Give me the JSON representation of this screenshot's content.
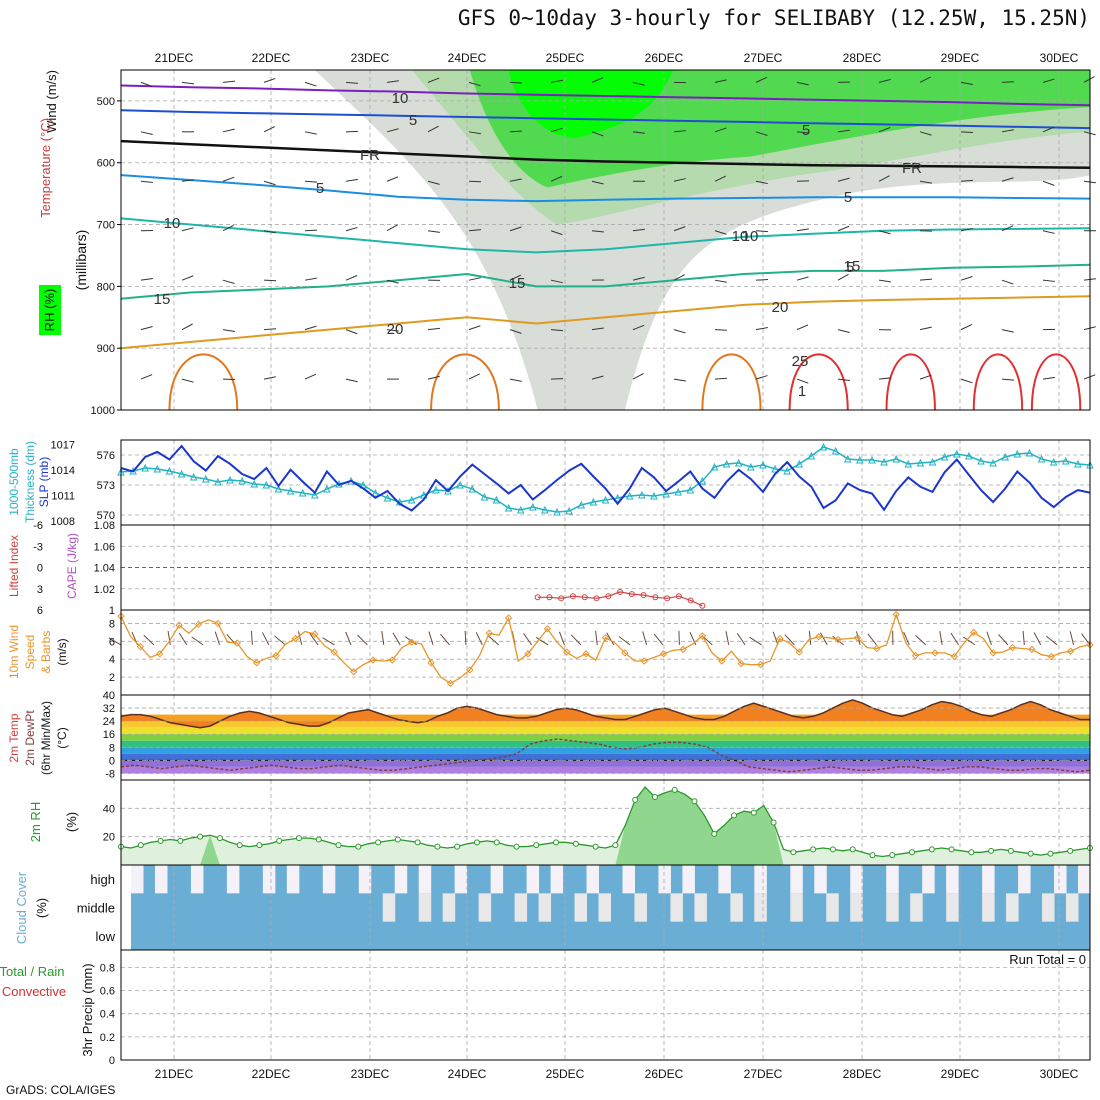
{
  "title": "GFS 0~10day 3-hourly for SELIBABY (12.25W, 15.25N)",
  "credit": "GrADS: COLA/IGES",
  "chart_data": {
    "type": "meteogram",
    "days": [
      "21DEC",
      "22DEC",
      "23DEC",
      "24DEC",
      "25DEC",
      "26DEC",
      "27DEC",
      "28DEC",
      "29DEC",
      "30DEC"
    ],
    "colors": {
      "rh_green": "#3fd93f",
      "rh_bright": "#00ff00",
      "gray": "#c8cfc8",
      "freeze": "#111111",
      "slp": "#1c36cc",
      "thick": "#22b3c3",
      "wind10": "#e8962a",
      "rh2m": "#2a9a2a",
      "cloud": "#6aaed6",
      "cloud_bg": "#e8e8e8",
      "ref_red": "#e03030"
    },
    "panels": [
      {
        "id": "upper",
        "labels": [
          "Wind (m/s)",
          "Temperature (°C)",
          "RH (%)",
          "(millibars)"
        ],
        "yticks": [
          "500",
          "600",
          "700",
          "800",
          "900",
          "1000"
        ],
        "contour_labels": [
          "10",
          "5",
          "FR",
          "5",
          "10",
          "15",
          "15",
          "20",
          "20",
          "25",
          "1",
          "10",
          "5",
          "5",
          "FR",
          "5",
          "10",
          "15"
        ],
        "isotherms": [
          {
            "label": "-10",
            "color": "#7a1fc0",
            "p": [
              475,
              478,
              480,
              483,
              485,
              488,
              490,
              492,
              494,
              496,
              498,
              500,
              502,
              505,
              507
            ]
          },
          {
            "label": "-5",
            "color": "#1f4fd0",
            "p": [
              515,
              518,
              520,
              522,
              524,
              526,
              528,
              530,
              532,
              534,
              536,
              538,
              540,
              542,
              544
            ]
          },
          {
            "label": "FR",
            "color": "#111111",
            "p": [
              565,
              570,
              575,
              580,
              585,
              590,
              595,
              598,
              600,
              602,
              604,
              605,
              606,
              607,
              608
            ]
          },
          {
            "label": "5",
            "color": "#1a8fe0",
            "p": [
              620,
              628,
              636,
              645,
              655,
              660,
              662,
              660,
              658,
              657,
              656,
              656,
              656,
              657,
              658
            ]
          },
          {
            "label": "10",
            "color": "#1fb5a8",
            "p": [
              690,
              700,
              710,
              720,
              730,
              740,
              745,
              740,
              730,
              720,
              715,
              710,
              708,
              707,
              706
            ]
          },
          {
            "label": "15",
            "color": "#22b08a",
            "p": [
              820,
              810,
              805,
              800,
              790,
              780,
              800,
              800,
              790,
              780,
              775,
              775,
              770,
              768,
              765
            ]
          },
          {
            "label": "20",
            "color": "#e09a20",
            "p": [
              900,
              890,
              880,
              870,
              860,
              850,
              860,
              850,
              840,
              830,
              825,
              822,
              820,
              818,
              816
            ]
          }
        ]
      },
      {
        "id": "slp",
        "labels": [
          "1000-500mb",
          "Thickness (dm)",
          "SLP (mb)"
        ],
        "yticks_left": [
          "576",
          "573",
          "570"
        ],
        "yticks_right": [
          "1017",
          "1014",
          "1011",
          "1008"
        ],
        "slp": [
          1014.2,
          1013.8,
          1015.5,
          1016.1,
          1015.2,
          1016.8,
          1015.0,
          1013.9,
          1015.6,
          1014.7,
          1013.5,
          1012.9,
          1014.2,
          1012.1,
          1014.0,
          1012.6,
          1011.3,
          1013.8,
          1012.2,
          1012.7,
          1011.8,
          1010.7,
          1011.5,
          1010.0,
          1009.2,
          1010.5,
          1012.8,
          1011.5,
          1013.2,
          1014.6,
          1013.5,
          1012.4,
          1011.2,
          1012.2,
          1010.5,
          1011.6,
          1012.8,
          1013.9,
          1014.7,
          1013.2,
          1011.8,
          1010.0,
          1011.8,
          1014.2,
          1013.1,
          1011.5,
          1012.6,
          1013.8,
          1011.8,
          1010.7,
          1012.6,
          1014.0,
          1012.9,
          1011.4,
          1013.5,
          1014.9,
          1013.2,
          1012.0,
          1009.5,
          1010.4,
          1012.4,
          1011.6,
          1011.2,
          1009.3,
          1011.5,
          1013.1,
          1012.0,
          1011.4,
          1013.7,
          1015.2,
          1013.4,
          1011.6,
          1010.2,
          1011.8,
          1013.8,
          1012.5,
          1010.7,
          1009.6,
          1010.8,
          1011.6,
          1011.3
        ],
        "thickness": [
          574.3,
          574.4,
          574.7,
          574.6,
          574.4,
          574.1,
          573.8,
          573.6,
          573.3,
          573.5,
          573.4,
          573.1,
          573.0,
          572.6,
          572.4,
          572.2,
          572.0,
          572.6,
          573.1,
          573.4,
          573.0,
          572.2,
          571.7,
          571.3,
          571.5,
          572.0,
          572.5,
          572.4,
          573.0,
          572.6,
          571.8,
          571.5,
          570.7,
          570.5,
          570.8,
          570.5,
          570.3,
          570.4,
          571.0,
          571.3,
          571.5,
          571.7,
          571.9,
          572.0,
          571.9,
          572.1,
          572.3,
          572.5,
          573.4,
          574.8,
          575.1,
          575.2,
          574.8,
          575.0,
          574.6,
          574.4,
          575.1,
          575.9,
          576.8,
          576.4,
          575.6,
          575.5,
          575.5,
          575.3,
          575.6,
          575.1,
          575.2,
          575.3,
          575.8,
          576.1,
          575.9,
          575.4,
          575.2,
          575.8,
          576.1,
          576.2,
          575.6,
          575.3,
          575.4,
          575.1,
          575.0
        ]
      },
      {
        "id": "cape",
        "labels": [
          "Lifted Index",
          "CAPE (J/kg)"
        ],
        "yticks_left": [
          "-6",
          "-3",
          "0",
          "3",
          "6"
        ],
        "yticks_right": [
          "1.08",
          "1.06",
          "1.04",
          "1.02",
          "1"
        ],
        "cape_segment": [
          1.012,
          1.012,
          1.011,
          1.013,
          1.012,
          1.011,
          1.013,
          1.017,
          1.015,
          1.014,
          1.012,
          1.011,
          1.013,
          1.009,
          1.004
        ]
      },
      {
        "id": "wind10",
        "labels": [
          "10m Wind",
          "Speed",
          "& Barbs",
          "(m/s)"
        ],
        "yticks": [
          "8",
          "6",
          "4",
          "2"
        ],
        "speed": [
          8.8,
          6.5,
          5.4,
          4.2,
          4.6,
          6.0,
          7.8,
          6.9,
          7.9,
          8.4,
          8.0,
          5.9,
          5.8,
          4.3,
          3.6,
          4.1,
          4.4,
          5.7,
          6.3,
          7.1,
          6.8,
          5.5,
          4.8,
          3.6,
          2.6,
          3.4,
          3.9,
          3.8,
          3.9,
          5.3,
          5.9,
          5.7,
          3.6,
          2.0,
          1.3,
          1.9,
          2.8,
          4.4,
          6.9,
          6.7,
          8.6,
          3.8,
          4.6,
          6.0,
          7.4,
          5.9,
          4.8,
          4.1,
          4.6,
          3.9,
          6.4,
          5.8,
          4.7,
          3.8,
          3.8,
          4.2,
          4.6,
          5.0,
          5.1,
          5.7,
          6.6,
          4.7,
          3.8,
          4.9,
          3.5,
          3.4,
          3.4,
          3.8,
          6.3,
          5.8,
          4.8,
          6.2,
          6.5,
          6.4,
          6.2,
          6.3,
          6.4,
          5.3,
          5.2,
          5.6,
          9.0,
          5.8,
          4.4,
          4.7,
          4.7,
          4.7,
          4.3,
          5.8,
          7.0,
          6.3,
          4.7,
          4.8,
          5.3,
          5.2,
          5.1,
          4.5,
          4.3,
          4.7,
          4.9,
          5.4,
          5.6
        ]
      },
      {
        "id": "temp2m",
        "labels": [
          "2m Temp",
          "2m DewPt",
          "(6hr Min/Max)",
          "(°C)"
        ],
        "yticks": [
          "40",
          "32",
          "24",
          "16",
          "8",
          "0",
          "-8"
        ],
        "temp": [
          27,
          28,
          28,
          27,
          25,
          23,
          22,
          21,
          20,
          21,
          24,
          27,
          29,
          30,
          29,
          27,
          25,
          23,
          22,
          21,
          21,
          23,
          26,
          29,
          30,
          31,
          29,
          27,
          25,
          24,
          23,
          24,
          27,
          29,
          32,
          33,
          32,
          30,
          28,
          27,
          26,
          26,
          27,
          29,
          31,
          32,
          31,
          29,
          27,
          26,
          25,
          25,
          27,
          29,
          31,
          32,
          30,
          28,
          26,
          25,
          25,
          27,
          30,
          33,
          35,
          33,
          31,
          29,
          27,
          26,
          27,
          29,
          32,
          35,
          37,
          35,
          32,
          30,
          28,
          27,
          29,
          31,
          34,
          36,
          35,
          33,
          30,
          28,
          27,
          29,
          31,
          34,
          36,
          34,
          31,
          29,
          27,
          25,
          25
        ],
        "dewpt": [
          -4,
          -3,
          -4,
          -5,
          -4,
          -3,
          -4,
          -5,
          -6,
          -5,
          -4,
          -3,
          -4,
          -5,
          -5,
          -4,
          -3,
          -4,
          -5,
          -6,
          -6,
          -5,
          -4,
          -3,
          -2,
          -1,
          0,
          1,
          2,
          4,
          10,
          12,
          13,
          12,
          11,
          10,
          8,
          7,
          8,
          10,
          11,
          11,
          10,
          8,
          3,
          0,
          -4,
          -5,
          -6,
          -7,
          -6,
          -5,
          -4,
          -5,
          -6,
          -6,
          -5,
          -4,
          -4,
          -5,
          -6,
          -5,
          -4,
          -4,
          -5,
          -6,
          -6,
          -5,
          -5,
          -6,
          -7,
          -6
        ]
      },
      {
        "id": "rh2m",
        "labels": [
          "2m RH",
          "(%)"
        ],
        "yticks": [
          "40",
          "20"
        ],
        "rh": [
          13,
          12,
          14,
          16,
          17,
          18,
          17,
          19,
          20,
          21,
          19,
          16,
          14,
          13,
          14,
          15,
          17,
          18,
          19,
          19,
          18,
          16,
          14,
          13,
          13,
          15,
          16,
          17,
          18,
          17,
          16,
          14,
          13,
          12,
          13,
          15,
          16,
          17,
          16,
          14,
          13,
          13,
          14,
          15,
          16,
          16,
          15,
          14,
          13,
          12,
          14,
          28,
          46,
          55,
          48,
          51,
          53,
          50,
          45,
          35,
          22,
          28,
          35,
          38,
          37,
          42,
          30,
          11,
          9,
          10,
          11,
          12,
          11,
          10,
          11,
          9,
          7,
          6,
          7,
          8,
          9,
          10,
          11,
          12,
          11,
          10,
          9,
          9,
          10,
          11,
          10,
          9,
          8,
          7,
          8,
          9,
          10,
          11,
          12
        ]
      },
      {
        "id": "cloud",
        "labels": [
          "Cloud Cover",
          "(%)"
        ],
        "levels": [
          "high",
          "middle",
          "low"
        ]
      },
      {
        "id": "precip",
        "labels": [
          "3hr Precip (mm)",
          "Total / Rain",
          "Convective"
        ],
        "yticks": [
          "0.8",
          "0.6",
          "0.4",
          "0.2",
          "0"
        ],
        "run_total": "Run Total = 0"
      }
    ]
  }
}
